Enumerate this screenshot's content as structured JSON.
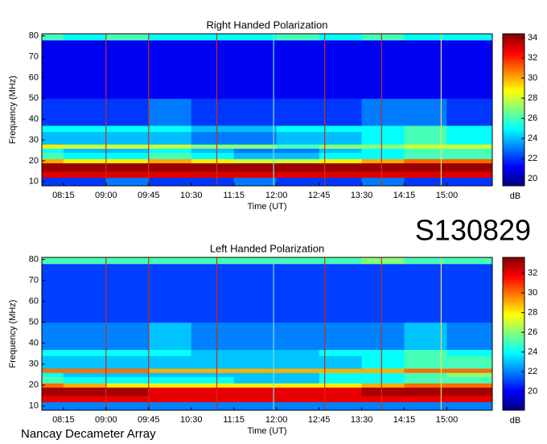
{
  "chart_data": [
    {
      "type": "heatmap",
      "title": "Right Handed Polarization",
      "x_label": "Time (UT)",
      "y_label": "Frequency (MHz)",
      "colorbar_label": "dB",
      "colormap": "jet",
      "xlim": [
        7.87,
        15.8
      ],
      "ylim": [
        8,
        81
      ],
      "clim": [
        19.3,
        34.4
      ],
      "xticks": [
        {
          "value": 8.25,
          "label": "08:15"
        },
        {
          "value": 9,
          "label": "09:00"
        },
        {
          "value": 9.75,
          "label": "09:45"
        },
        {
          "value": 10.5,
          "label": "10:30"
        },
        {
          "value": 11.25,
          "label": "11:15"
        },
        {
          "value": 12,
          "label": "12:00"
        },
        {
          "value": 12.75,
          "label": "12:45"
        },
        {
          "value": 13.5,
          "label": "13:30"
        },
        {
          "value": 14.25,
          "label": "14:15"
        },
        {
          "value": 15,
          "label": "15:00"
        }
      ],
      "yticks": [
        10,
        20,
        30,
        40,
        50,
        60,
        70,
        80
      ],
      "cticks": [
        20,
        22,
        24,
        26,
        28,
        30,
        32,
        34
      ],
      "xbins": [
        7.87,
        8.25,
        9,
        9.75,
        10.5,
        11.25,
        12,
        12.75,
        13.5,
        14.25,
        15,
        15.8
      ],
      "ybins": [
        8,
        12,
        15,
        19,
        21,
        24,
        26,
        28,
        34,
        37,
        50,
        78,
        81
      ],
      "values": [
        [
          22,
          22,
          23,
          22,
          22,
          23,
          22,
          22,
          23,
          22,
          22
        ],
        [
          33,
          33,
          33,
          33,
          33,
          33,
          33,
          33,
          33,
          33,
          33
        ],
        [
          34,
          34,
          34,
          34,
          34,
          34,
          34,
          34,
          34,
          34,
          34
        ],
        [
          30,
          29,
          29,
          30,
          29,
          28,
          28,
          29,
          30,
          31,
          31
        ],
        [
          26,
          25,
          25,
          26,
          25,
          24,
          24,
          25,
          25,
          26,
          26
        ],
        [
          25,
          24,
          24,
          25,
          24,
          23,
          23,
          24,
          25,
          26,
          26
        ],
        [
          29,
          28,
          28,
          28,
          27,
          27,
          26,
          27,
          27,
          28,
          28
        ],
        [
          24,
          24,
          24,
          24,
          23,
          23,
          24,
          24,
          25,
          26,
          25
        ],
        [
          25,
          25,
          25,
          25,
          24,
          24,
          25,
          25,
          25,
          26,
          25
        ],
        [
          22,
          22,
          22,
          23,
          22,
          22,
          22,
          22,
          23,
          23,
          22
        ],
        [
          21,
          21,
          21,
          21,
          21,
          21,
          21,
          21,
          21,
          21,
          21
        ],
        [
          26,
          25,
          26,
          25,
          25,
          25,
          26,
          25,
          26,
          25,
          25
        ]
      ]
    },
    {
      "type": "heatmap",
      "title": "Left Handed Polarization",
      "x_label": "Time (UT)",
      "y_label": "Frequency (MHz)",
      "colorbar_label": "dB",
      "colormap": "jet",
      "xlim": [
        7.87,
        15.8
      ],
      "ylim": [
        8,
        81
      ],
      "clim": [
        18.1,
        33.6
      ],
      "xticks": [
        {
          "value": 8.25,
          "label": "08:15"
        },
        {
          "value": 9,
          "label": "09:00"
        },
        {
          "value": 9.75,
          "label": "09:45"
        },
        {
          "value": 10.5,
          "label": "10:30"
        },
        {
          "value": 11.25,
          "label": "11:15"
        },
        {
          "value": 12,
          "label": "12:00"
        },
        {
          "value": 12.75,
          "label": "12:45"
        },
        {
          "value": 13.5,
          "label": "13:30"
        },
        {
          "value": 14.25,
          "label": "14:15"
        },
        {
          "value": 15,
          "label": "15:00"
        }
      ],
      "yticks": [
        10,
        20,
        30,
        40,
        50,
        60,
        70,
        80
      ],
      "cticks": [
        20,
        22,
        24,
        26,
        28,
        30,
        32
      ],
      "xbins": [
        7.87,
        8.25,
        9,
        9.75,
        10.5,
        11.25,
        12,
        12.75,
        13.5,
        14.25,
        15,
        15.8
      ],
      "ybins": [
        8,
        12,
        15,
        19,
        21,
        24,
        26,
        28,
        34,
        37,
        50,
        78,
        81
      ],
      "values": [
        [
          22,
          22,
          22,
          22,
          22,
          22,
          22,
          22,
          22,
          22,
          22
        ],
        [
          32,
          32,
          32,
          32,
          32,
          32,
          32,
          32,
          32,
          32,
          32
        ],
        [
          33,
          33,
          33,
          32,
          32,
          32,
          32,
          32,
          33,
          33,
          33
        ],
        [
          30,
          29,
          28,
          28,
          28,
          28,
          28,
          28,
          29,
          30,
          30
        ],
        [
          25,
          24,
          24,
          24,
          24,
          23,
          23,
          24,
          24,
          25,
          25
        ],
        [
          24,
          23,
          23,
          23,
          23,
          23,
          23,
          24,
          24,
          25,
          26
        ],
        [
          30,
          30,
          30,
          29,
          29,
          29,
          29,
          29,
          29,
          30,
          30
        ],
        [
          23,
          23,
          23,
          23,
          23,
          23,
          23,
          23,
          24,
          25,
          25
        ],
        [
          24,
          24,
          24,
          24,
          23,
          23,
          23,
          24,
          24,
          25,
          24
        ],
        [
          22,
          22,
          22,
          23,
          22,
          22,
          22,
          22,
          22,
          23,
          22
        ],
        [
          21,
          21,
          21,
          21,
          21,
          21,
          21,
          21,
          21,
          21,
          21
        ],
        [
          25,
          25,
          25,
          25,
          25,
          25,
          25,
          25,
          26,
          25,
          25
        ]
      ]
    }
  ],
  "labels": {
    "observation": "S130829",
    "instrument": "Nancay Decameter Array"
  }
}
